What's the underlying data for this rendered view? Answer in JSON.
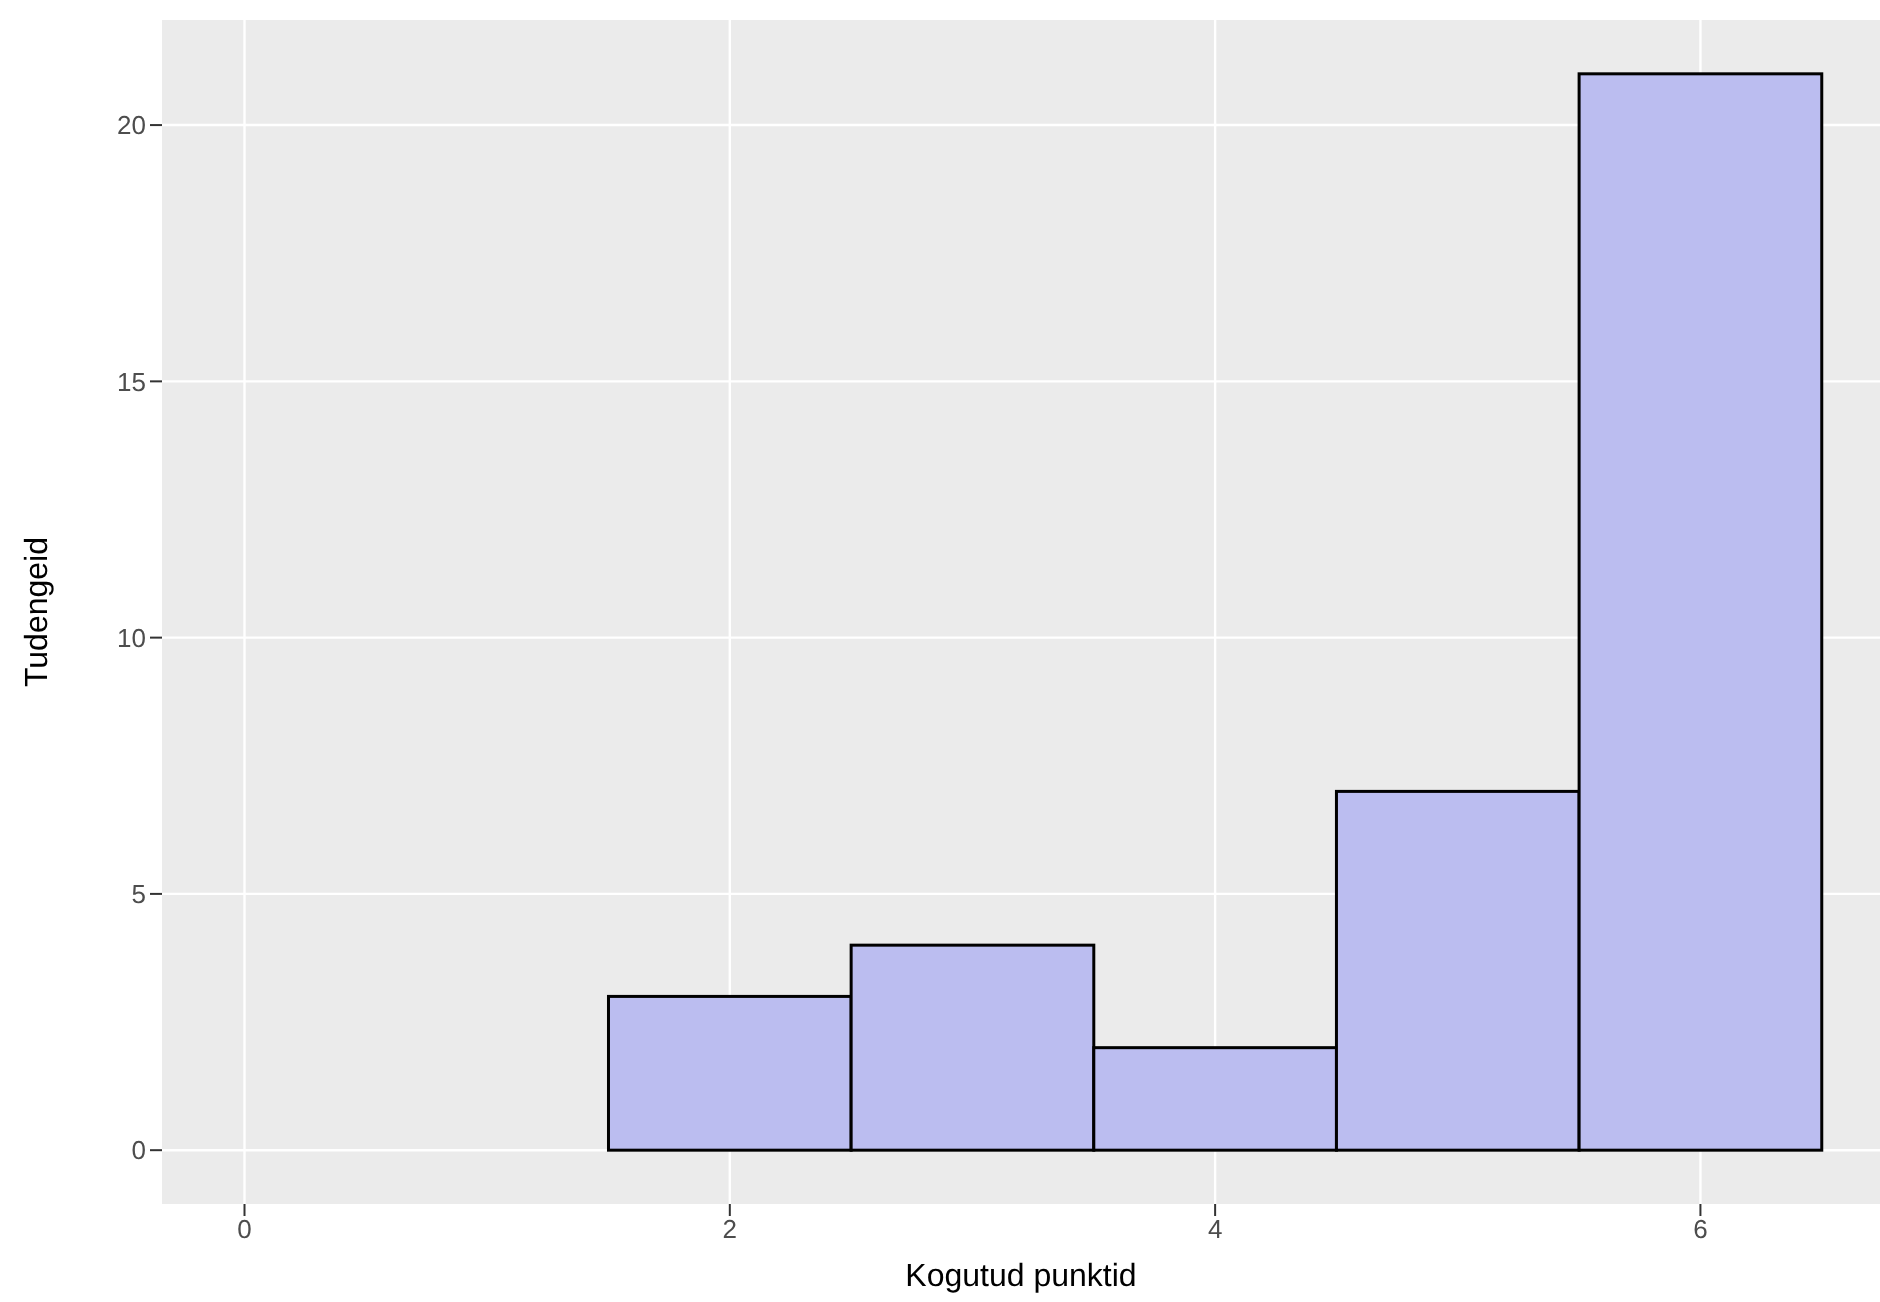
{
  "chart_data": {
    "type": "histogram",
    "xlabel": "Kogutud punktid",
    "ylabel": "Tudengeid",
    "bins": [
      0.5,
      1.5,
      2.5,
      3.5,
      4.5,
      5.5,
      6.5
    ],
    "values": [
      0,
      3,
      4,
      2,
      7,
      21
    ],
    "color": "#bbbdf0",
    "xlim": [
      -0.34,
      6.74
    ],
    "xticks": [
      0,
      2,
      4,
      6
    ],
    "ylim": [
      -1.05,
      22.05
    ],
    "yticks": [
      0,
      5,
      10,
      15,
      20
    ],
    "grid": true
  }
}
